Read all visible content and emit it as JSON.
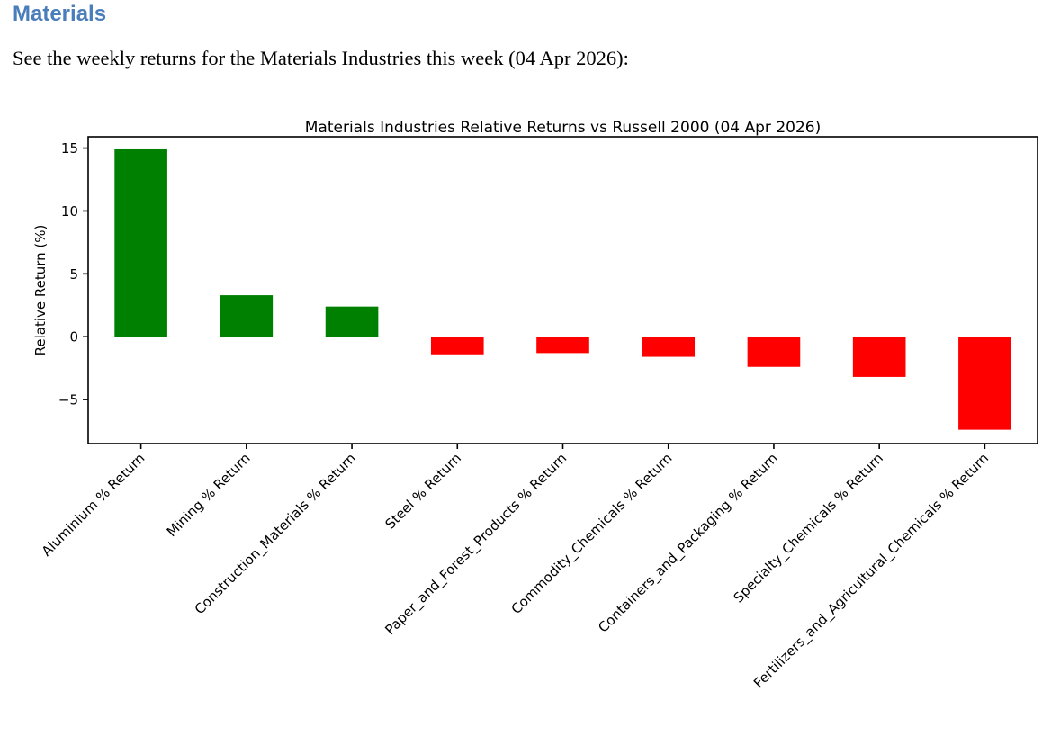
{
  "page": {
    "heading": "Materials",
    "description": "See the weekly returns for the Materials Industries this week (04 Apr 2026):"
  },
  "chart_data": {
    "type": "bar",
    "title": "Materials Industries Relative Returns vs Russell 2000 (04 Apr 2026)",
    "xlabel": "",
    "ylabel": "Relative Return (%)",
    "categories": [
      "Aluminium % Return",
      "Mining % Return",
      "Construction_Materials % Return",
      "Steel % Return",
      "Paper_and_Forest_Products % Return",
      "Commodity_Chemicals % Return",
      "Containers_and_Packaging % Return",
      "Specialty_Chemicals % Return",
      "Fertilizers_and_Agricultural_Chemicals % Return"
    ],
    "values": [
      14.9,
      3.3,
      2.4,
      -1.4,
      -1.3,
      -1.6,
      -2.4,
      -3.2,
      -7.4
    ],
    "yticks": [
      15,
      10,
      5,
      0,
      -5
    ],
    "ylim": [
      -8.5,
      15.9
    ],
    "xtick_rotation": 45,
    "grid": false,
    "legend": null,
    "positive_color": "#008000",
    "negative_color": "#ff0000",
    "axis_color": "#000000"
  }
}
